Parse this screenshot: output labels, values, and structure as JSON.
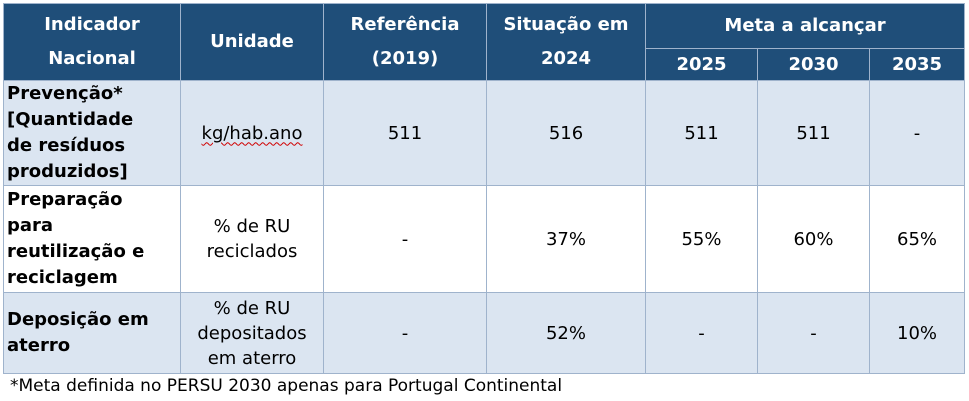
{
  "table": {
    "headers": {
      "indicator": "Indicador\nNacional",
      "unit": "Unidade",
      "reference": "Referência\n(2019)",
      "situation": "Situação em\n2024",
      "goal": "Meta a alcançar",
      "years": [
        "2025",
        "2030",
        "2035"
      ]
    },
    "rows": [
      {
        "indicator": "Prevenção*\n[Quantidade\nde resíduos\nproduzidos]",
        "unit": "kg/hab.ano",
        "reference": "511",
        "situation": "516",
        "goals": [
          "511",
          "511",
          "-"
        ]
      },
      {
        "indicator": "Preparação\npara\nreutilização e\nreciclagem",
        "unit": "% de RU\nreciclados",
        "reference": "-",
        "situation": "37%",
        "goals": [
          "55%",
          "60%",
          "65%"
        ]
      },
      {
        "indicator": "Deposição em\naterro",
        "unit": "% de RU\ndepositados\nem aterro",
        "reference": "-",
        "situation": "52%",
        "goals": [
          "-",
          "-",
          "10%"
        ]
      }
    ]
  },
  "footnote": "*Meta definida no PERSU 2030 apenas para Portugal Continental"
}
